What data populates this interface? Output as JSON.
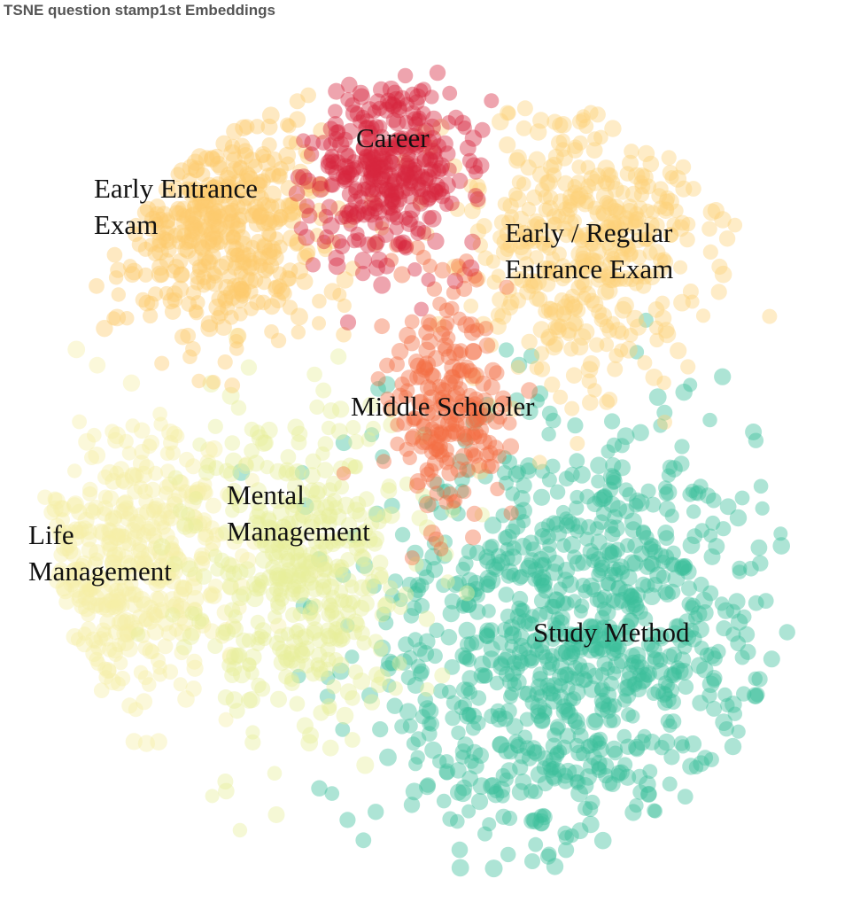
{
  "chart_data": {
    "type": "scatter",
    "title": "TSNE question stamp1st Embeddings",
    "xlabel": "",
    "ylabel": "",
    "grid": false,
    "legend": "none",
    "axes_visible": false,
    "colors": {
      "Career": "#d7263d",
      "Middle Schooler": "#f46d43",
      "Early Entrance Exam": "#fdcb6e",
      "Early / Regular Entrance Exam": "#fdd27a",
      "Life Management": "#f5efa6",
      "Mental Management": "#e6ef9c",
      "Study Method": "#3bbf9a"
    },
    "clusters": [
      {
        "name": "Career",
        "label_lines": [
          "Career"
        ],
        "center": [
          440,
          190
        ],
        "spread": [
          75,
          95
        ],
        "count": 340
      },
      {
        "name": "Middle Schooler",
        "label_lines": [
          "Middle Schooler"
        ],
        "center": [
          505,
          450
        ],
        "spread": [
          55,
          120
        ],
        "count": 220
      },
      {
        "name": "Early Entrance Exam",
        "label_lines": [
          "Early Entrance",
          "Exam"
        ],
        "center": [
          250,
          250
        ],
        "spread": [
          110,
          110
        ],
        "count": 430
      },
      {
        "name": "Early / Regular Entrance Exam",
        "label_lines": [
          "Early / Regular",
          "Entrance Exam"
        ],
        "center": [
          670,
          270
        ],
        "spread": [
          120,
          130
        ],
        "count": 430
      },
      {
        "name": "Life Management",
        "label_lines": [
          "Life",
          "Management"
        ],
        "center": [
          150,
          640
        ],
        "spread": [
          100,
          130
        ],
        "count": 430
      },
      {
        "name": "Mental Management",
        "label_lines": [
          "Mental",
          "Management"
        ],
        "center": [
          340,
          640
        ],
        "spread": [
          110,
          150
        ],
        "count": 430
      },
      {
        "name": "Study Method",
        "label_lines": [
          "Study Method"
        ],
        "center": [
          650,
          730
        ],
        "spread": [
          190,
          210
        ],
        "count": 950
      }
    ]
  }
}
